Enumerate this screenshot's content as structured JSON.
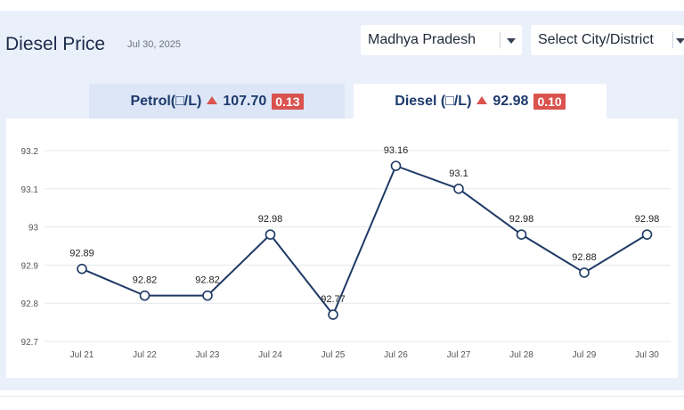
{
  "header": {
    "title": "Diesel Price",
    "date": "Jul 30, 2025"
  },
  "filters": {
    "state": "Madhya Pradesh",
    "city": "Select City/District"
  },
  "tabs": [
    {
      "label": "Petrol(□/L)",
      "price": "107.70",
      "change": "0.13",
      "trend": "up",
      "active": false
    },
    {
      "label": "Diesel (□/L)",
      "price": "92.98",
      "change": "0.10",
      "trend": "up",
      "active": true
    }
  ],
  "colors": {
    "line": "#1f3a66",
    "up": "#d9534f",
    "grid": "#e5e7eb"
  },
  "chart_data": {
    "type": "line",
    "categories": [
      "Jul 21",
      "Jul 22",
      "Jul 23",
      "Jul 24",
      "Jul 25",
      "Jul 26",
      "Jul 27",
      "Jul 28",
      "Jul 29",
      "Jul 30"
    ],
    "values": [
      92.89,
      92.82,
      92.82,
      92.98,
      92.77,
      93.16,
      93.1,
      92.98,
      92.88,
      92.98
    ],
    "data_labels": [
      "92.89",
      "92.82",
      "92.82",
      "92.98",
      "92.77",
      "93.16",
      "93.1",
      "92.98",
      "92.88",
      "92.98"
    ],
    "yticks": [
      92.7,
      92.8,
      92.9,
      93,
      93.1,
      93.2
    ],
    "ytick_labels": [
      "92.7",
      "92.8",
      "92.9",
      "93",
      "93.1",
      "93.2"
    ],
    "ylim": [
      92.7,
      93.2
    ],
    "grid": true,
    "xlabel": "",
    "ylabel": ""
  }
}
